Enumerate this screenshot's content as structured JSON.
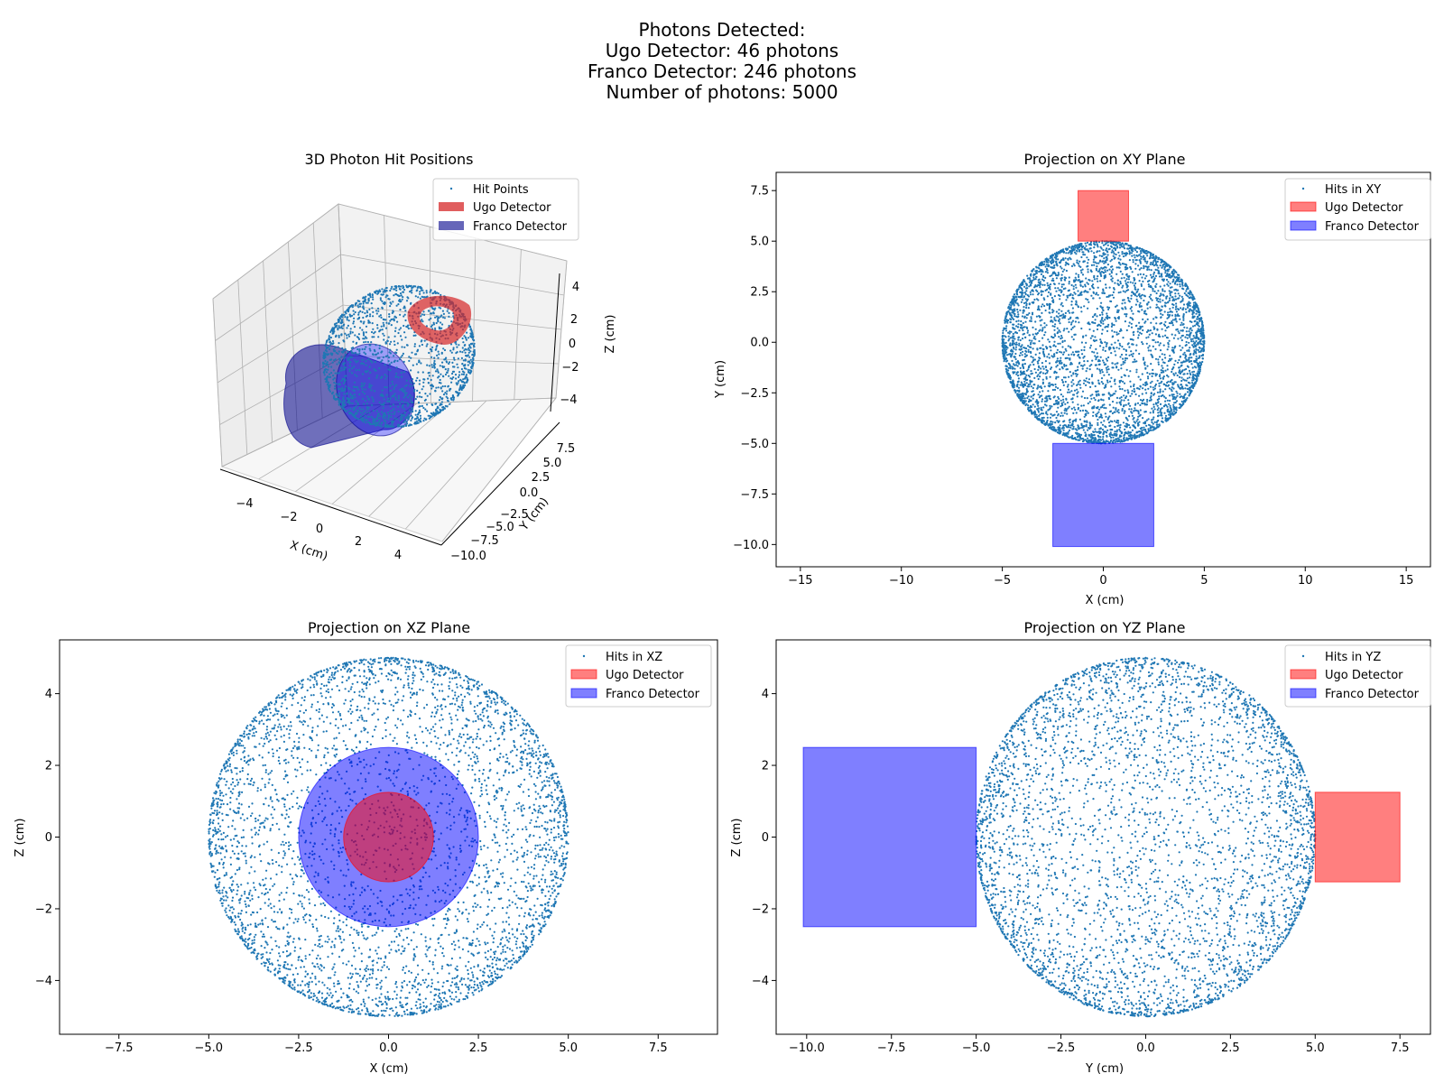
{
  "suptitle_lines": [
    "Photons Detected:",
    "Ugo Detector: 46 photons",
    "Franco Detector: 246 photons",
    "Number of photons: 5000"
  ],
  "colors": {
    "points": "#1f77b4",
    "ugo": "#ff0000",
    "franco": "#0000ff",
    "ugo_3d": "#d62728",
    "franco_3d": "#00008b"
  },
  "chart_data": [
    {
      "type": "scatter",
      "id": "panel3d",
      "title": "3D Photon Hit Positions",
      "xlabel": "X (cm)",
      "ylabel": "Y (cm)",
      "zlabel": "Z (cm)",
      "xticks": [
        "−4",
        "−2",
        "0",
        "2",
        "4"
      ],
      "yticks": [
        "−10.0",
        "−7.5",
        "−5.0",
        "−2.5",
        "0.0",
        "2.5",
        "5.0",
        "7.5"
      ],
      "zticks": [
        "−4",
        "−2",
        "0",
        "2",
        "4"
      ],
      "sphere_radius": 5,
      "n_points": 1800,
      "legend": [
        "Hit Points",
        "Ugo Detector",
        "Franco Detector"
      ],
      "legend_loc": "upper right"
    },
    {
      "type": "scatter",
      "id": "xy",
      "title": "Projection on XY Plane",
      "xlabel": "X (cm)",
      "ylabel": "Y (cm)",
      "xlim": [
        -16.2,
        16.2
      ],
      "ylim": [
        -11.1,
        8.4
      ],
      "xticks": [
        -15,
        -10,
        -5,
        0,
        5,
        10,
        15
      ],
      "yticks": [
        -10.0,
        -7.5,
        -5.0,
        -2.5,
        0.0,
        2.5,
        5.0,
        7.5
      ],
      "tick_decimals": 1,
      "xtick_decimals": 0,
      "sphere_radius": 5,
      "n_points": 4200,
      "ugo_rect": {
        "x0": -1.25,
        "x1": 1.25,
        "y0": 5.0,
        "y1": 7.5
      },
      "franco_rect": {
        "x0": -2.5,
        "x1": 2.5,
        "y0": -10.1,
        "y1": -5.0
      },
      "legend": [
        "Hits in XY",
        "Ugo Detector",
        "Franco Detector"
      ],
      "legend_loc": "upper right"
    },
    {
      "type": "scatter",
      "id": "xz",
      "title": "Projection on XZ Plane",
      "xlabel": "X (cm)",
      "ylabel": "Z (cm)",
      "xlim": [
        -9.15,
        9.15
      ],
      "ylim": [
        -5.5,
        5.5
      ],
      "xticks": [
        -7.5,
        -5.0,
        -2.5,
        0.0,
        2.5,
        5.0,
        7.5
      ],
      "yticks": [
        -4,
        -2,
        0,
        2,
        4
      ],
      "sphere_radius": 5,
      "n_points": 4200,
      "franco_circle_r": 2.5,
      "ugo_circle_r": 1.25,
      "legend": [
        "Hits in XZ",
        "Ugo Detector",
        "Franco Detector"
      ],
      "legend_loc": "upper right"
    },
    {
      "type": "scatter",
      "id": "yz",
      "title": "Projection on YZ Plane",
      "xlabel": "Y (cm)",
      "ylabel": "Z (cm)",
      "xlim": [
        -10.9,
        8.4
      ],
      "ylim": [
        -5.5,
        5.5
      ],
      "xticks": [
        -10.0,
        -7.5,
        -5.0,
        -2.5,
        0.0,
        2.5,
        5.0,
        7.5
      ],
      "yticks": [
        -4,
        -2,
        0,
        2,
        4
      ],
      "sphere_radius": 5,
      "n_points": 4200,
      "franco_rect": {
        "x0": -10.1,
        "x1": -5.0,
        "y0": -2.5,
        "y1": 2.5
      },
      "ugo_rect": {
        "x0": 5.0,
        "x1": 7.5,
        "y0": -1.25,
        "y1": 1.25
      },
      "legend": [
        "Hits in YZ",
        "Ugo Detector",
        "Franco Detector"
      ],
      "legend_loc": "upper right"
    }
  ]
}
